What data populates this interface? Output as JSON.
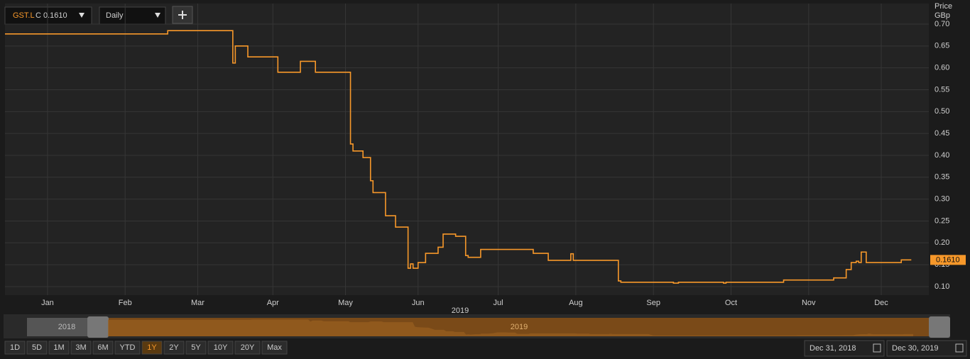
{
  "toolbar": {
    "symbol": "GST.L",
    "quote": "C 0.1610",
    "interval": "Daily"
  },
  "chart_data": {
    "type": "line",
    "y_label": "Price",
    "y_unit": "GBp",
    "x_label": "2019",
    "xlim": [
      0,
      369
    ],
    "ylim": [
      0.0805,
      0.747
    ],
    "xticks": [
      {
        "value": 17,
        "label": "Jan"
      },
      {
        "value": 48,
        "label": "Feb"
      },
      {
        "value": 77,
        "label": "Mar"
      },
      {
        "value": 107,
        "label": "Apr"
      },
      {
        "value": 136,
        "label": "May"
      },
      {
        "value": 165,
        "label": "Jun"
      },
      {
        "value": 197,
        "label": "Jul"
      },
      {
        "value": 228,
        "label": "Aug"
      },
      {
        "value": 259,
        "label": "Sep"
      },
      {
        "value": 290,
        "label": "Oct"
      },
      {
        "value": 321,
        "label": "Nov"
      },
      {
        "value": 350,
        "label": "Dec"
      }
    ],
    "yticks": [
      {
        "value": 0.1,
        "label": "0.10"
      },
      0.15,
      {
        "value": 0.2,
        "label": "0.20"
      },
      0.25,
      {
        "value": 0.3,
        "label": "0.30"
      },
      0.35,
      {
        "value": 0.4,
        "label": "0.40"
      },
      0.45,
      {
        "value": 0.5,
        "label": "0.50"
      },
      0.55,
      {
        "value": 0.6,
        "label": "0.60"
      },
      0.65,
      {
        "value": 0.7,
        "label": "0.70"
      }
    ],
    "grid": true,
    "last_price": {
      "value": 0.161,
      "label": "0.1610"
    },
    "series": [
      {
        "name": "GST.L",
        "color": "#f7982a",
        "x": [
          0,
          64,
          65,
          90,
          91,
          92,
          96,
          97,
          108,
          109,
          117,
          118,
          123,
          124,
          137,
          138,
          139,
          143,
          144,
          146,
          147,
          151,
          152,
          155,
          156,
          160,
          161,
          162,
          163,
          165,
          167,
          168,
          171,
          173,
          175,
          179,
          180,
          183,
          184,
          185,
          189,
          190,
          210,
          211,
          216,
          217,
          225,
          226,
          227,
          243,
          245,
          246,
          266,
          267,
          269,
          286,
          287,
          288,
          309,
          311,
          330,
          331,
          335,
          336,
          338,
          340,
          341,
          342,
          344,
          357,
          358,
          362
        ],
        "values": [
          0.6775,
          0.6775,
          0.685,
          0.685,
          0.611,
          0.65,
          0.65,
          0.625,
          0.625,
          0.59,
          0.59,
          0.615,
          0.615,
          0.59,
          0.59,
          0.426,
          0.41,
          0.395,
          0.395,
          0.342,
          0.315,
          0.315,
          0.262,
          0.262,
          0.236,
          0.236,
          0.142,
          0.152,
          0.142,
          0.155,
          0.155,
          0.176,
          0.176,
          0.19,
          0.22,
          0.22,
          0.215,
          0.215,
          0.171,
          0.167,
          0.167,
          0.185,
          0.185,
          0.176,
          0.176,
          0.16,
          0.16,
          0.175,
          0.16,
          0.16,
          0.113,
          0.11,
          0.11,
          0.108,
          0.11,
          0.11,
          0.108,
          0.11,
          0.11,
          0.115,
          0.115,
          0.12,
          0.12,
          0.139,
          0.155,
          0.158,
          0.155,
          0.179,
          0.155,
          0.155,
          0.161,
          0.161
        ]
      }
    ]
  },
  "navigator_labels": [
    "2018",
    "2019"
  ],
  "range_buttons": [
    "1D",
    "5D",
    "1M",
    "3M",
    "6M",
    "YTD",
    "1Y",
    "2Y",
    "5Y",
    "10Y",
    "20Y",
    "Max"
  ],
  "active_range": 6,
  "date_range": [
    "Dec 31, 2018",
    "Dec 30, 2019"
  ]
}
